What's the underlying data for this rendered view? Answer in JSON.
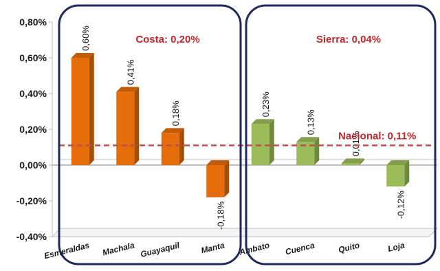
{
  "chart_data": {
    "type": "bar",
    "categories": [
      "Esmeraldas",
      "Machala",
      "Guayaquil",
      "Manta",
      "Ambato",
      "Cuenca",
      "Quito",
      "Loja"
    ],
    "values": [
      0.6,
      0.41,
      0.18,
      -0.18,
      0.23,
      0.13,
      0.01,
      -0.12
    ],
    "data_labels": [
      "0,60%",
      "0,41%",
      "0,18%",
      "-0,18%",
      "0,23%",
      "0,13%",
      "0,01%",
      "-0,12%"
    ],
    "ylim": [
      -0.4,
      0.8
    ],
    "yticks": [
      -0.4,
      -0.2,
      0.0,
      0.2,
      0.4,
      0.6,
      0.8
    ],
    "ytick_labels": [
      "-0,40%",
      "-0,20%",
      "0,00%",
      "0,20%",
      "0,40%",
      "0,60%",
      "0,80%"
    ],
    "colors": {
      "Costa": "#e46c0a",
      "Sierra": "#9bbb59",
      "nacional_line": "#c0504d",
      "group_border": "#1f2a5c"
    },
    "groups": [
      {
        "label": "Costa: 0,20%",
        "categories": [
          "Esmeraldas",
          "Machala",
          "Guayaquil",
          "Manta"
        ]
      },
      {
        "label": "Sierra: 0,04%",
        "categories": [
          "Ambato",
          "Cuenca",
          "Quito",
          "Loja"
        ]
      }
    ],
    "reference_line": {
      "label": "Nacional: 0,11%",
      "value": 0.11
    },
    "grid": false
  }
}
